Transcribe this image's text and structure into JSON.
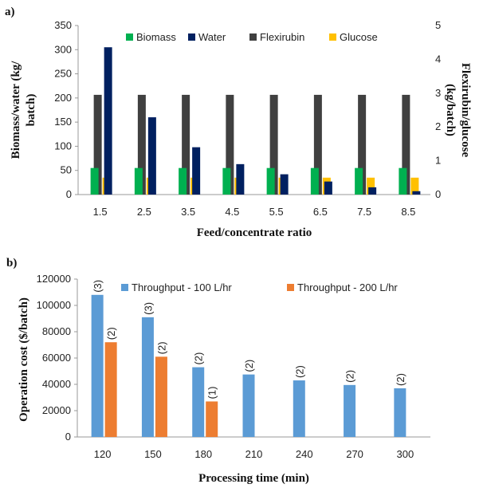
{
  "chart_data": [
    {
      "panel": "a)",
      "type": "bar",
      "title": "",
      "xlabel": "Feed/concentrate ratio",
      "ylabel": "Biomass/water (kg/ batch)",
      "ylabel_right": "Flexirubin/glucose (kg/batch)",
      "categories": [
        "1.5",
        "2.5",
        "3.5",
        "4.5",
        "5.5",
        "6.5",
        "7.5",
        "8.5"
      ],
      "ylim": [
        0,
        350
      ],
      "yticks": [
        "0",
        "50",
        "100",
        "150",
        "200",
        "250",
        "300",
        "350"
      ],
      "ylim_right": [
        0,
        5
      ],
      "yticks_right": [
        "0",
        "1",
        "2",
        "3",
        "4",
        "5"
      ],
      "legend_position": "top",
      "series": [
        {
          "name": "Biomass",
          "axis": "left",
          "color": "#00b050",
          "values": [
            55,
            55,
            55,
            55,
            55,
            55,
            55,
            55
          ]
        },
        {
          "name": "Water",
          "axis": "left",
          "color": "#002060",
          "values": [
            305,
            160,
            98,
            63,
            42,
            27,
            15,
            7
          ]
        },
        {
          "name": "Flexirubin",
          "axis": "right",
          "color": "#404040",
          "values": [
            2.95,
            2.95,
            2.95,
            2.95,
            2.95,
            2.95,
            2.95,
            2.95
          ]
        },
        {
          "name": "Glucose",
          "axis": "right",
          "color": "#ffc000",
          "values": [
            0.5,
            0.5,
            0.5,
            0.5,
            0.5,
            0.5,
            0.5,
            0.5
          ]
        }
      ]
    },
    {
      "panel": "b)",
      "type": "bar",
      "title": "",
      "xlabel": "Processing time (min)",
      "ylabel": "Operation cost ($/batch)",
      "categories": [
        "120",
        "150",
        "180",
        "210",
        "240",
        "270",
        "300"
      ],
      "ylim": [
        0,
        120000
      ],
      "yticks": [
        "0",
        "20000",
        "40000",
        "60000",
        "80000",
        "100000",
        "120000"
      ],
      "legend_position": "top",
      "series": [
        {
          "name": "Throughput - 100 L/hr",
          "color": "#5b9bd5",
          "values": [
            108000,
            91000,
            53000,
            47500,
            43000,
            39500,
            37000
          ],
          "labels": [
            "(3)",
            "(3)",
            "(2)",
            "(2)",
            "(2)",
            "(2)",
            "(2)"
          ]
        },
        {
          "name": "Throughput - 200 L/hr",
          "color": "#ed7d31",
          "values": [
            72000,
            61000,
            27000,
            null,
            null,
            null,
            null
          ],
          "labels": [
            "(2)",
            "(2)",
            "(1)",
            null,
            null,
            null,
            null
          ]
        }
      ]
    }
  ]
}
